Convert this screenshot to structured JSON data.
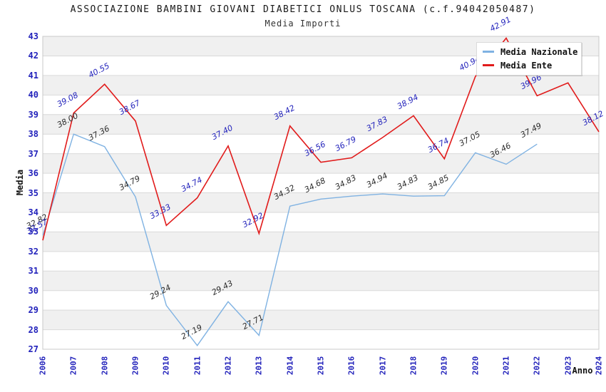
{
  "chart_data": {
    "type": "line",
    "title": "ASSOCIAZIONE BAMBINI GIOVANI DIABETICI ONLUS TOSCANA (c.f.94042050487)",
    "subtitle": "Media Importi",
    "xlabel": "Anno",
    "ylabel": "Media",
    "ylim": [
      27,
      43
    ],
    "grid": "horizontal-bands",
    "legend_position": "top-right",
    "x": [
      2006,
      2007,
      2008,
      2009,
      2010,
      2011,
      2012,
      2013,
      2014,
      2015,
      2016,
      2017,
      2018,
      2019,
      2020,
      2021,
      2022,
      2023,
      2024
    ],
    "series": [
      {
        "name": "Media Nazionale",
        "color": "#7fb2e2",
        "label_color": "#2b2b2b",
        "stroke_width": 1.4,
        "values": [
          32.82,
          38.0,
          37.36,
          34.79,
          29.24,
          27.19,
          29.43,
          27.71,
          34.32,
          34.68,
          34.83,
          34.94,
          34.83,
          34.85,
          37.05,
          36.46,
          37.49,
          null,
          null
        ]
      },
      {
        "name": "Media Ente",
        "color": "#e11b1b",
        "label_color": "#2222bb",
        "stroke_width": 1.6,
        "values": [
          32.57,
          39.08,
          40.55,
          38.67,
          33.33,
          34.74,
          37.4,
          32.92,
          38.42,
          36.56,
          36.79,
          37.83,
          38.94,
          36.74,
          40.94,
          42.91,
          39.96,
          40.62,
          38.12
        ]
      }
    ],
    "colors": {
      "band": "#f0f0f0",
      "gridline": "#d9d9d9",
      "plot_border": "#c8c8c8",
      "axis_text": "#2222bb"
    }
  }
}
